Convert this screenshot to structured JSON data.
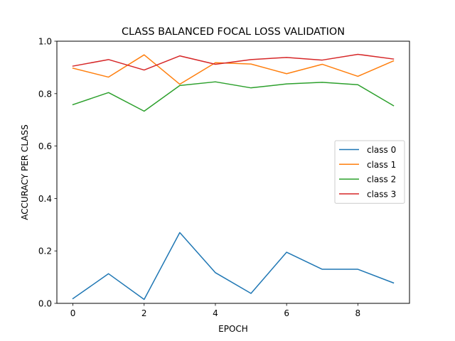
{
  "chart_data": {
    "type": "line",
    "title": "CLASS BALANCED FOCAL LOSS VALIDATION",
    "xlabel": "EPOCH",
    "ylabel": "ACCURACY PER CLASS",
    "x": [
      0,
      1,
      2,
      3,
      4,
      5,
      6,
      7,
      8,
      9
    ],
    "xlim": [
      -0.45,
      9.45
    ],
    "ylim": [
      0.0,
      1.0
    ],
    "xticks": [
      0,
      2,
      4,
      6,
      8
    ],
    "yticks": [
      0.0,
      0.2,
      0.4,
      0.6,
      0.8,
      1.0
    ],
    "xtick_labels": [
      "0",
      "2",
      "4",
      "6",
      "8"
    ],
    "ytick_labels": [
      "0.0",
      "0.2",
      "0.4",
      "0.6",
      "0.8",
      "1.0"
    ],
    "grid": false,
    "legend_position": "center-right",
    "series": [
      {
        "name": "class 0",
        "color": "#1f77b4",
        "values": [
          0.018,
          0.113,
          0.015,
          0.27,
          0.117,
          0.038,
          0.195,
          0.13,
          0.13,
          0.078
        ]
      },
      {
        "name": "class 1",
        "color": "#ff7f0e",
        "values": [
          0.897,
          0.863,
          0.948,
          0.836,
          0.918,
          0.913,
          0.876,
          0.912,
          0.866,
          0.925
        ]
      },
      {
        "name": "class 2",
        "color": "#2ca02c",
        "values": [
          0.758,
          0.804,
          0.733,
          0.831,
          0.845,
          0.822,
          0.837,
          0.843,
          0.834,
          0.754
        ]
      },
      {
        "name": "class 3",
        "color": "#d62728",
        "values": [
          0.905,
          0.93,
          0.89,
          0.944,
          0.912,
          0.93,
          0.938,
          0.928,
          0.95,
          0.932
        ]
      }
    ]
  }
}
